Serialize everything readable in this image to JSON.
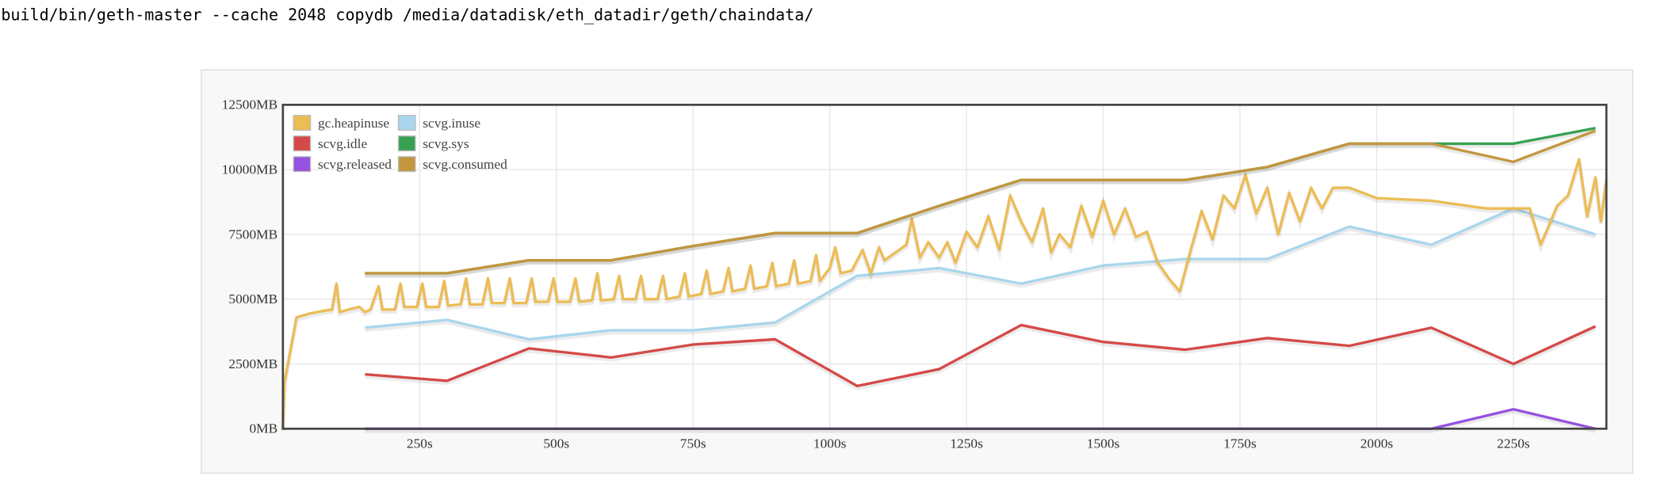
{
  "command": "build/bin/geth-master --cache 2048 copydb /media/datadisk/eth_datadir/geth/chaindata/",
  "chart_data": {
    "type": "line",
    "xlim": [
      0,
      2420
    ],
    "ylim": [
      0,
      12500
    ],
    "xticks": [
      {
        "value": 250,
        "label": "250s"
      },
      {
        "value": 500,
        "label": "500s"
      },
      {
        "value": 750,
        "label": "750s"
      },
      {
        "value": 1000,
        "label": "1000s"
      },
      {
        "value": 1250,
        "label": "1250s"
      },
      {
        "value": 1500,
        "label": "1500s"
      },
      {
        "value": 1750,
        "label": "1750s"
      },
      {
        "value": 2000,
        "label": "2000s"
      },
      {
        "value": 2250,
        "label": "2250s"
      }
    ],
    "yticks": [
      {
        "value": 0,
        "label": "0MB"
      },
      {
        "value": 2500,
        "label": "2500MB"
      },
      {
        "value": 5000,
        "label": "5000MB"
      },
      {
        "value": 7500,
        "label": "7500MB"
      },
      {
        "value": 10000,
        "label": "10000MB"
      },
      {
        "value": 12500,
        "label": "12500MB"
      }
    ],
    "grid": true,
    "legend": "upper left",
    "series": [
      {
        "name": "gc.heapinuse",
        "color": "#ecbc55",
        "x": [
          0,
          3,
          25,
          50,
          75,
          90,
          98,
          104,
          120,
          140,
          150,
          160,
          175,
          182,
          205,
          215,
          222,
          245,
          255,
          262,
          285,
          295,
          302,
          325,
          335,
          342,
          365,
          375,
          382,
          405,
          415,
          422,
          445,
          455,
          462,
          485,
          495,
          502,
          525,
          535,
          542,
          565,
          575,
          582,
          605,
          615,
          622,
          645,
          655,
          662,
          685,
          695,
          702,
          725,
          735,
          742,
          765,
          775,
          782,
          805,
          815,
          822,
          845,
          855,
          862,
          885,
          895,
          902,
          925,
          935,
          942,
          965,
          975,
          982,
          1000,
          1010,
          1020,
          1040,
          1060,
          1075,
          1090,
          1100,
          1120,
          1140,
          1150,
          1165,
          1180,
          1200,
          1215,
          1230,
          1250,
          1270,
          1290,
          1310,
          1330,
          1350,
          1370,
          1390,
          1405,
          1420,
          1440,
          1460,
          1480,
          1500,
          1520,
          1540,
          1560,
          1580,
          1600,
          1620,
          1640,
          1660,
          1680,
          1700,
          1720,
          1740,
          1760,
          1780,
          1800,
          1820,
          1840,
          1860,
          1880,
          1900,
          1920,
          1950,
          2000,
          2100,
          2200,
          2280,
          2300,
          2330,
          2350,
          2370,
          2385,
          2400,
          2410,
          2420
        ],
        "values": [
          0,
          1800,
          4300,
          4450,
          4550,
          4600,
          5600,
          4500,
          4600,
          4700,
          4500,
          4600,
          5500,
          4600,
          4600,
          5600,
          4700,
          4700,
          5600,
          4700,
          4700,
          5700,
          4750,
          4800,
          5800,
          4800,
          4800,
          5800,
          4850,
          4850,
          5800,
          4850,
          4850,
          5800,
          4900,
          4900,
          5800,
          4900,
          4900,
          5800,
          4900,
          4950,
          6000,
          4950,
          5000,
          5900,
          5000,
          5000,
          5900,
          5000,
          5000,
          5900,
          5000,
          5100,
          6000,
          5100,
          5200,
          6100,
          5200,
          5300,
          6200,
          5300,
          5400,
          6300,
          5400,
          5500,
          6400,
          5500,
          5600,
          6500,
          5600,
          5700,
          6700,
          5700,
          6200,
          7000,
          6000,
          6100,
          6900,
          6000,
          7000,
          6500,
          6800,
          7100,
          8100,
          6600,
          7200,
          6600,
          7200,
          6400,
          7600,
          7000,
          8200,
          6900,
          9000,
          8000,
          7200,
          8500,
          6800,
          7500,
          7000,
          8600,
          7400,
          8800,
          7500,
          8500,
          7400,
          7600,
          6400,
          5800,
          5300,
          6900,
          8400,
          7300,
          9000,
          8500,
          9800,
          8300,
          9300,
          7500,
          9100,
          8000,
          9300,
          8500,
          9300,
          9300,
          8900,
          8800,
          8500,
          8500,
          7100,
          8600,
          9000,
          10400,
          8200,
          9700,
          8000,
          9600
        ]
      },
      {
        "name": "scvg.inuse",
        "color": "#a9d6ee",
        "x": [
          150,
          300,
          450,
          600,
          750,
          900,
          1050,
          1200,
          1350,
          1500,
          1650,
          1800,
          1950,
          2100,
          2250,
          2400
        ],
        "values": [
          3900,
          4200,
          3450,
          3800,
          3800,
          4100,
          5900,
          6200,
          5600,
          6300,
          6550,
          6550,
          7800,
          7100,
          8500,
          7500
        ]
      },
      {
        "name": "scvg.idle",
        "color": "#d44a48",
        "x": [
          150,
          300,
          450,
          600,
          750,
          900,
          1050,
          1200,
          1350,
          1500,
          1650,
          1800,
          1950,
          2100,
          2250,
          2400
        ],
        "values": [
          2100,
          1850,
          3100,
          2750,
          3250,
          3450,
          1650,
          2300,
          4000,
          3350,
          3050,
          3500,
          3200,
          3900,
          2500,
          3950
        ]
      },
      {
        "name": "scvg.sys",
        "color": "#37a153",
        "x": [
          150,
          300,
          450,
          600,
          750,
          900,
          1050,
          1200,
          1350,
          1500,
          1650,
          1800,
          1950,
          2100,
          2250,
          2400
        ],
        "values": [
          6000,
          6000,
          6500,
          6500,
          7050,
          7550,
          7550,
          8600,
          9600,
          9600,
          9600,
          10100,
          11000,
          11000,
          11000,
          11600
        ]
      },
      {
        "name": "scvg.released",
        "color": "#9552e0",
        "x": [
          150,
          300,
          450,
          600,
          750,
          900,
          1050,
          1200,
          1350,
          1500,
          1650,
          1800,
          1950,
          2100,
          2250,
          2400
        ],
        "values": [
          0,
          0,
          0,
          0,
          0,
          0,
          0,
          0,
          0,
          0,
          0,
          0,
          0,
          0,
          750,
          0
        ]
      },
      {
        "name": "scvg.consumed",
        "color": "#c3963f",
        "x": [
          150,
          300,
          450,
          600,
          750,
          900,
          1050,
          1200,
          1350,
          1500,
          1650,
          1800,
          1950,
          2100,
          2250,
          2400
        ],
        "values": [
          6000,
          6000,
          6500,
          6500,
          7050,
          7550,
          7550,
          8600,
          9600,
          9600,
          9600,
          10100,
          11000,
          11000,
          10300,
          11500
        ]
      }
    ]
  }
}
